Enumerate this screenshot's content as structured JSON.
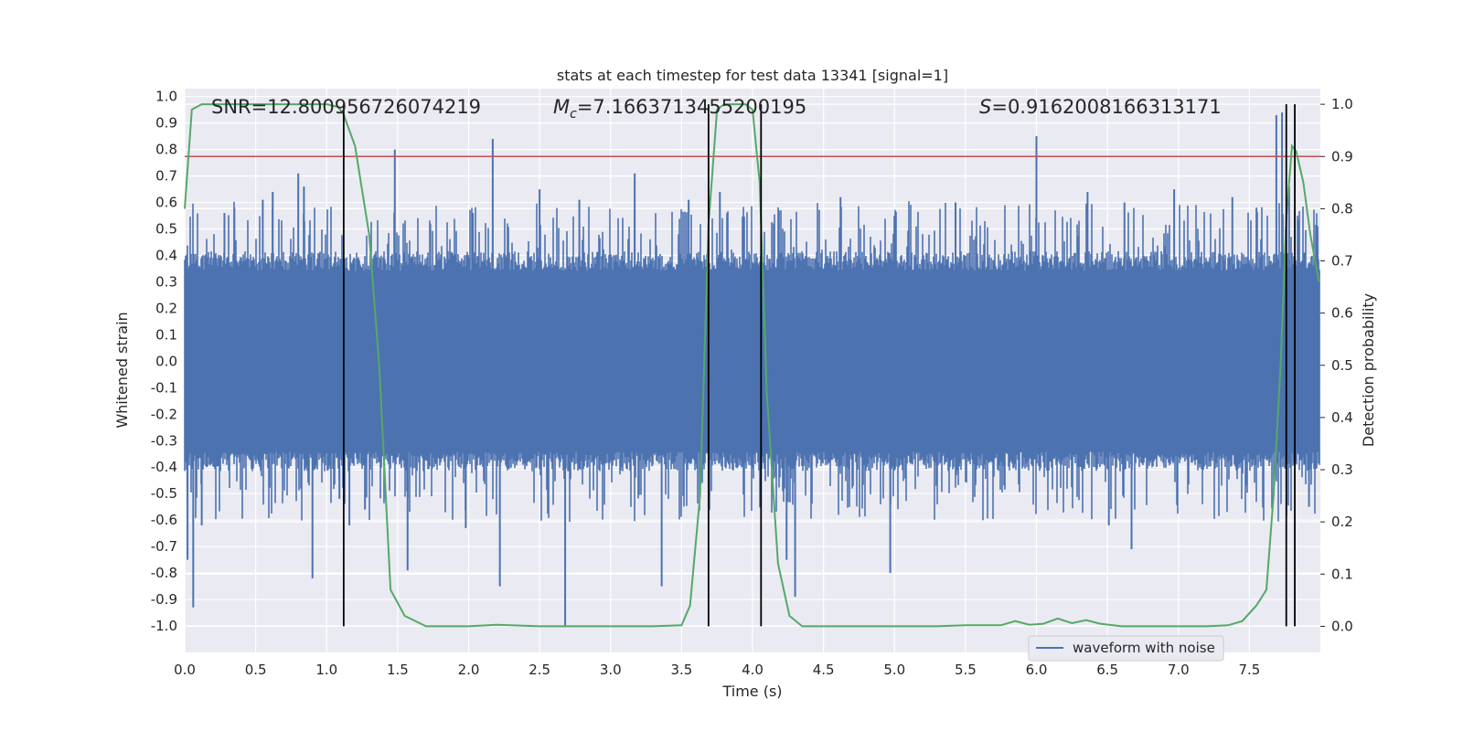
{
  "chart_data": {
    "type": "line",
    "title": "stats at each timestep for test data 13341 [signal=1]",
    "xlabel": "Time (s)",
    "ylabel_left": "Whitened strain",
    "ylabel_right": "Detection probability",
    "xlim": [
      0,
      8
    ],
    "ylim_left": [
      -1.1,
      1.03
    ],
    "ylim_right": [
      -0.05,
      1.03
    ],
    "x_ticks": [
      "0.0",
      "0.5",
      "1.0",
      "1.5",
      "2.0",
      "2.5",
      "3.0",
      "3.5",
      "4.0",
      "4.5",
      "5.0",
      "5.5",
      "6.0",
      "6.5",
      "7.0",
      "7.5"
    ],
    "y_left_ticks": [
      "1.0",
      "0.9",
      "0.8",
      "0.7",
      "0.6",
      "0.5",
      "0.4",
      "0.3",
      "0.2",
      "0.1",
      "0.0",
      "-0.1",
      "-0.2",
      "-0.3",
      "-0.4",
      "-0.5",
      "-0.6",
      "-0.7",
      "-0.8",
      "-0.9",
      "-1.0"
    ],
    "y_right_ticks": [
      "1.0",
      "0.9",
      "0.8",
      "0.7",
      "0.6",
      "0.5",
      "0.4",
      "0.3",
      "0.2",
      "0.1",
      "0.0"
    ],
    "grid": true,
    "legend_location": "lower center",
    "legend_label": "waveform with noise",
    "annotations": {
      "snr": "SNR=12.800956726074219",
      "mc_symbol": "M",
      "mc_sub": "c",
      "mc_value": "=7.1663713455200195",
      "s_symbol": "S",
      "s_value": "=0.9162008166313171"
    },
    "threshold": 0.9,
    "threshold_color": "#c44e52",
    "waveform_color": "#4c72b0",
    "probability_color": "#55a868",
    "vline_color": "#000000",
    "background_color": "#eaeaf2",
    "vertical_lines_x": [
      1.12,
      3.69,
      4.06,
      7.76,
      7.82
    ],
    "series": [
      {
        "name": "waveform with noise",
        "axis": "left",
        "envelope_typical": 0.36,
        "peaks": [
          [
            0.02,
            -0.75
          ],
          [
            0.06,
            -0.93
          ],
          [
            0.12,
            -0.62
          ],
          [
            0.28,
            0.56
          ],
          [
            0.35,
            0.58
          ],
          [
            0.55,
            0.61
          ],
          [
            0.62,
            0.64
          ],
          [
            0.8,
            0.71
          ],
          [
            0.84,
            0.66
          ],
          [
            0.9,
            -0.82
          ],
          [
            1.09,
            -0.52
          ],
          [
            1.16,
            -0.62
          ],
          [
            1.27,
            -0.56
          ],
          [
            1.48,
            0.8
          ],
          [
            1.57,
            -0.79
          ],
          [
            1.73,
            0.52
          ],
          [
            1.98,
            -0.63
          ],
          [
            2.03,
            0.56
          ],
          [
            2.17,
            0.84
          ],
          [
            2.22,
            -0.85
          ],
          [
            2.5,
            0.65
          ],
          [
            2.68,
            -1.0
          ],
          [
            2.78,
            0.61
          ],
          [
            3.17,
            0.71
          ],
          [
            3.36,
            -0.85
          ],
          [
            3.55,
            0.61
          ],
          [
            3.77,
            0.64
          ],
          [
            4.24,
            -0.75
          ],
          [
            4.3,
            -0.89
          ],
          [
            4.62,
            0.62
          ],
          [
            4.97,
            -0.8
          ],
          [
            5.43,
            0.6
          ],
          [
            6.0,
            0.85
          ],
          [
            6.36,
            0.64
          ],
          [
            6.51,
            -0.62
          ],
          [
            6.62,
            0.6
          ],
          [
            6.67,
            -0.71
          ],
          [
            6.97,
            0.65
          ],
          [
            7.38,
            0.62
          ],
          [
            7.55,
            0.58
          ],
          [
            7.69,
            0.93
          ],
          [
            7.73,
            0.94
          ],
          [
            7.78,
            0.66
          ],
          [
            7.92,
            -0.55
          ],
          [
            7.98,
            0.51
          ]
        ]
      },
      {
        "name": "detection probability",
        "axis": "right",
        "x": [
          0.0,
          0.05,
          0.12,
          0.2,
          0.4,
          0.6,
          0.8,
          1.0,
          1.08,
          1.12,
          1.2,
          1.3,
          1.37,
          1.45,
          1.55,
          1.7,
          2.0,
          2.2,
          2.5,
          2.7,
          3.0,
          3.3,
          3.5,
          3.56,
          3.63,
          3.69,
          3.75,
          3.8,
          3.88,
          3.95,
          4.0,
          4.05,
          4.1,
          4.18,
          4.26,
          4.35,
          4.45,
          4.6,
          4.8,
          5.0,
          5.3,
          5.5,
          5.75,
          5.85,
          5.95,
          6.05,
          6.15,
          6.25,
          6.35,
          6.45,
          6.6,
          6.8,
          7.0,
          7.2,
          7.35,
          7.45,
          7.55,
          7.62,
          7.67,
          7.72,
          7.76,
          7.8,
          7.83,
          7.88,
          7.93,
          7.99
        ],
        "y": [
          0.8,
          0.99,
          1.0,
          1.0,
          1.0,
          1.0,
          1.0,
          1.0,
          0.995,
          0.98,
          0.92,
          0.75,
          0.5,
          0.07,
          0.02,
          0.0,
          0.0,
          0.003,
          0.0,
          0.0,
          0.0,
          0.0,
          0.002,
          0.04,
          0.25,
          0.77,
          0.99,
          1.0,
          1.0,
          1.0,
          0.99,
          0.85,
          0.45,
          0.12,
          0.02,
          0.0,
          0.0,
          0.0,
          0.0,
          0.0,
          0.0,
          0.002,
          0.002,
          0.01,
          0.003,
          0.005,
          0.015,
          0.006,
          0.012,
          0.005,
          0.0,
          0.0,
          0.0,
          0.0,
          0.002,
          0.01,
          0.04,
          0.07,
          0.25,
          0.5,
          0.78,
          0.92,
          0.91,
          0.85,
          0.75,
          0.66
        ]
      }
    ]
  }
}
